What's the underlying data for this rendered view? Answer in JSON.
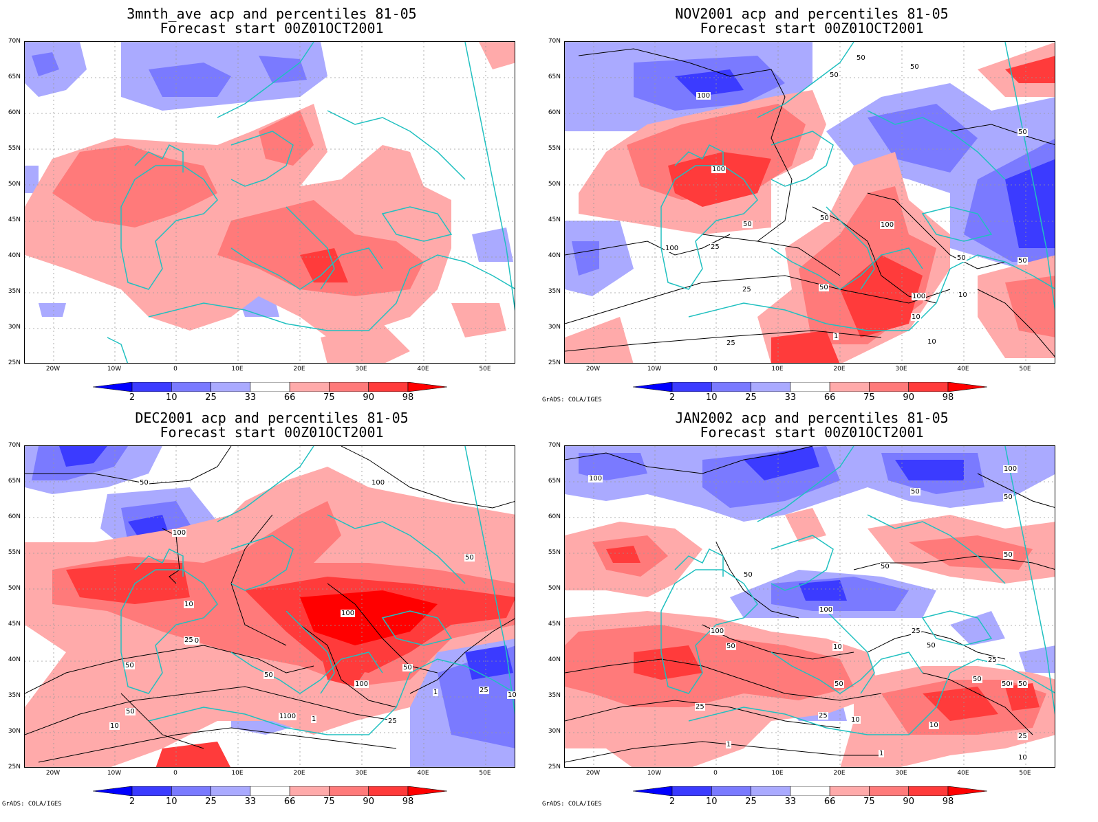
{
  "panels": [
    {
      "title1": "3mnth_ave acp and percentiles 81-05",
      "title2": "Forecast start 00Z01OCT2001",
      "credit": ""
    },
    {
      "title1": "NOV2001 acp and percentiles 81-05",
      "title2": "Forecast start 00Z01OCT2001",
      "credit": "GrADS: COLA/IGES"
    },
    {
      "title1": "DEC2001 acp and percentiles 81-05",
      "title2": "Forecast start 00Z01OCT2001",
      "credit": "GrADS: COLA/IGES"
    },
    {
      "title1": "JAN2002 acp and percentiles 81-05",
      "title2": "Forecast start 00Z01OCT2001",
      "credit": "GrADS: COLA/IGES"
    }
  ],
  "lat_labels": [
    "70N",
    "65N",
    "60N",
    "55N",
    "50N",
    "45N",
    "40N",
    "35N",
    "30N",
    "25N"
  ],
  "lon_labels": [
    "20W",
    "10W",
    "0",
    "10E",
    "20E",
    "30E",
    "40E",
    "50E"
  ],
  "colorbar": {
    "labels": [
      "2",
      "10",
      "25",
      "33",
      "66",
      "75",
      "90",
      "98"
    ],
    "colors": [
      "#0000ff",
      "#3b3bff",
      "#7a7aff",
      "#aaaaff",
      "#ffffff",
      "#ffaaaa",
      "#ff7a7a",
      "#ff3b3b",
      "#ff0000"
    ]
  },
  "contour_labels": {
    "p1": [
      "50",
      "50",
      "100",
      "50",
      "100",
      "50",
      "25",
      "100",
      "100",
      "100",
      "50",
      "50",
      "50",
      "50",
      "25",
      "50",
      "10",
      "25",
      "10",
      "1",
      "10"
    ],
    "p2": [
      "50",
      "100",
      "100",
      "50",
      "100",
      "100",
      "50",
      "50",
      "50",
      "100",
      "100",
      "50",
      "25",
      "10",
      "1",
      "25",
      "10",
      "1",
      "25",
      "10",
      "1"
    ],
    "p3": [
      "100",
      "100",
      "50",
      "50",
      "50",
      "50",
      "50",
      "100",
      "50",
      "50",
      "50",
      "25",
      "25",
      "10",
      "50",
      "50",
      "50",
      "25",
      "50",
      "25",
      "10",
      "1",
      "1",
      "10",
      "25",
      "10",
      "100"
    ]
  }
}
